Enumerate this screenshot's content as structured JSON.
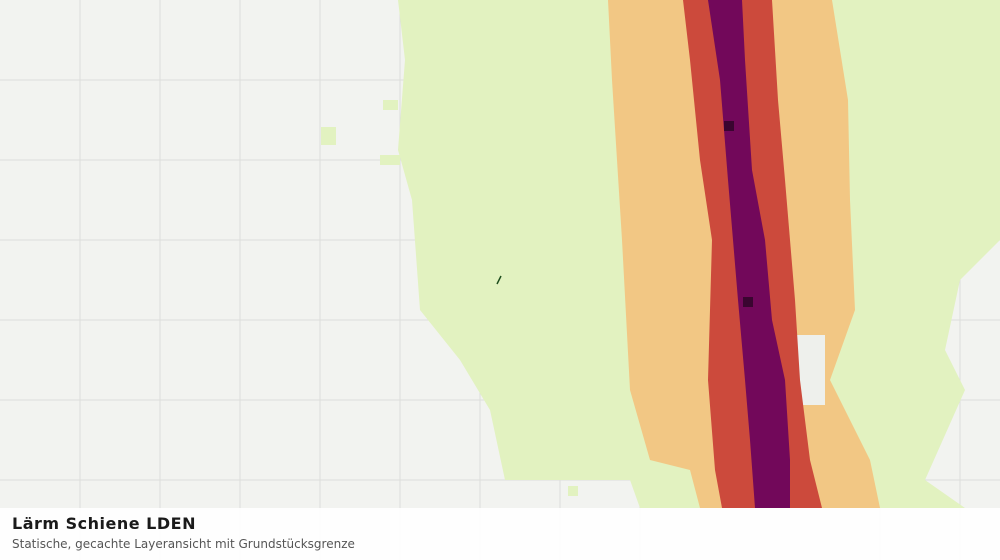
{
  "panel": {
    "title": "Lärm Schiene LDEN",
    "subtitle": "Statische, gecachte Layeransicht mit Grundstücksgrenze"
  }
}
